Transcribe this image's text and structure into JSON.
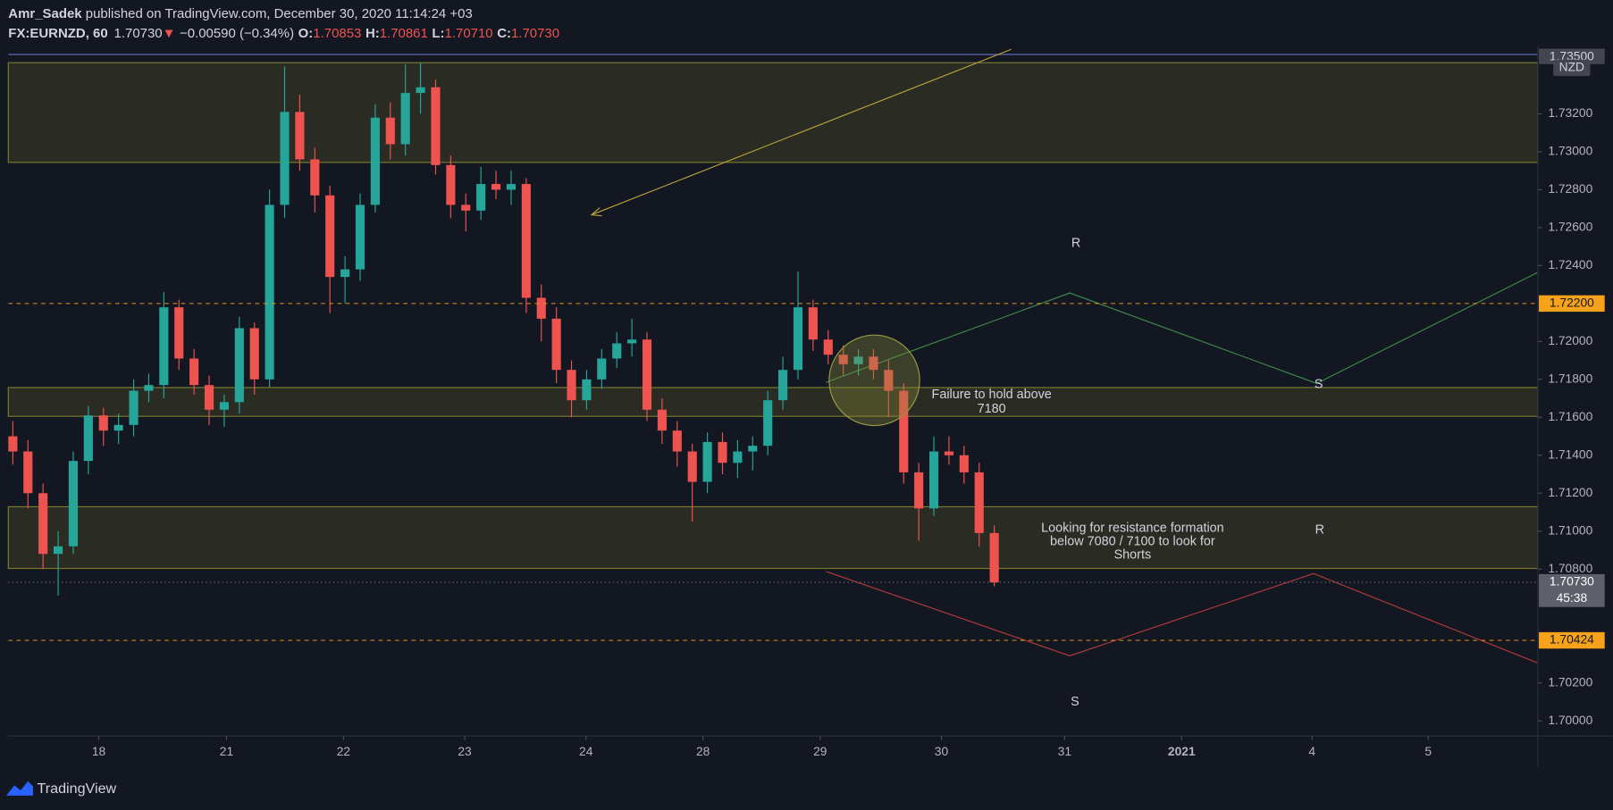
{
  "header": {
    "author": "Amr_Sadek",
    "published": " published on TradingView.com, December 30, 2020 11:14:24 +03",
    "symbol": "FX:EURNZD, 60",
    "last": "1.70730",
    "direction": "▼",
    "change": "−0.00590 (−0.34%)",
    "ohlc": [
      {
        "label": "O:",
        "value": "1.70853"
      },
      {
        "label": "H:",
        "value": "1.70861"
      },
      {
        "label": "L:",
        "value": "1.70710"
      },
      {
        "label": "C:",
        "value": "1.70730"
      }
    ]
  },
  "chart_data": {
    "type": "candlestick",
    "currency": "NZD",
    "colors": {
      "up": "#26a69a",
      "down": "#ef5350"
    },
    "xlim": [
      -0.3,
      101.0
    ],
    "ylim": [
      1.6992,
      1.7354
    ],
    "xticks": [
      {
        "value": 5.69,
        "label": "18"
      },
      {
        "value": 14.15,
        "label": "21"
      },
      {
        "value": 21.9,
        "label": "22"
      },
      {
        "value": 29.93,
        "label": "23"
      },
      {
        "value": 37.96,
        "label": "24"
      },
      {
        "value": 45.71,
        "label": "28"
      },
      {
        "value": 53.47,
        "label": "29"
      },
      {
        "value": 61.5,
        "label": "30"
      },
      {
        "value": 69.66,
        "label": "31"
      },
      {
        "value": 77.41,
        "label": "2021"
      },
      {
        "value": 86.05,
        "label": "4"
      },
      {
        "value": 93.74,
        "label": "5"
      }
    ],
    "yticks": [
      {
        "value": 1.732,
        "label": "1.73200"
      },
      {
        "value": 1.73,
        "label": "1.73000"
      },
      {
        "value": 1.728,
        "label": "1.72800"
      },
      {
        "value": 1.726,
        "label": "1.72600"
      },
      {
        "value": 1.724,
        "label": "1.72400"
      },
      {
        "value": 1.72,
        "label": "1.72000"
      },
      {
        "value": 1.718,
        "label": "1.71800"
      },
      {
        "value": 1.716,
        "label": "1.71600"
      },
      {
        "value": 1.714,
        "label": "1.71400"
      },
      {
        "value": 1.712,
        "label": "1.71200"
      },
      {
        "value": 1.71,
        "label": "1.71000"
      },
      {
        "value": 1.708,
        "label": "1.70800"
      },
      {
        "value": 1.702,
        "label": "1.70200"
      },
      {
        "value": 1.7,
        "label": "1.70000"
      }
    ],
    "top_label": {
      "value": 1.735,
      "label": "1.73500"
    },
    "levels": [
      {
        "value": 1.722,
        "label": "1.72200",
        "color": "#f7a21b"
      },
      {
        "value": 1.70424,
        "label": "1.70424",
        "color": "#f7a21b"
      }
    ],
    "last_price": {
      "value": 1.7073,
      "label": "1.70730",
      "countdown": "45:38"
    },
    "x": [
      0,
      1,
      2,
      3,
      4,
      5,
      6,
      7,
      8,
      9,
      10,
      11,
      12,
      13,
      14,
      15,
      16,
      17,
      18,
      19,
      20,
      21,
      22,
      23,
      24,
      25,
      26,
      27,
      28,
      29,
      30,
      31,
      32,
      33,
      34,
      35,
      36,
      37,
      38,
      39,
      40,
      41,
      42,
      43,
      44,
      45,
      46,
      47,
      48,
      49,
      50,
      51,
      52,
      53,
      54,
      55,
      56,
      57,
      58,
      59,
      60,
      61,
      62,
      63,
      64,
      65
    ],
    "ohlc": [
      [
        1.715,
        1.7158,
        1.7135,
        1.7142
      ],
      [
        1.7142,
        1.7148,
        1.7112,
        1.712
      ],
      [
        1.712,
        1.7125,
        1.708,
        1.7088
      ],
      [
        1.7088,
        1.71,
        1.7066,
        1.7092
      ],
      [
        1.7092,
        1.7142,
        1.7088,
        1.7137
      ],
      [
        1.7137,
        1.7166,
        1.713,
        1.7161
      ],
      [
        1.7161,
        1.7165,
        1.7145,
        1.7153
      ],
      [
        1.7153,
        1.7162,
        1.7146,
        1.7156
      ],
      [
        1.7156,
        1.718,
        1.715,
        1.7174
      ],
      [
        1.7174,
        1.7183,
        1.7168,
        1.7177
      ],
      [
        1.7177,
        1.7226,
        1.717,
        1.7218
      ],
      [
        1.7218,
        1.7222,
        1.7185,
        1.7191
      ],
      [
        1.7191,
        1.7196,
        1.7172,
        1.7177
      ],
      [
        1.7177,
        1.7182,
        1.7156,
        1.7164
      ],
      [
        1.7164,
        1.7172,
        1.7155,
        1.7168
      ],
      [
        1.7168,
        1.7213,
        1.7162,
        1.7207
      ],
      [
        1.7207,
        1.721,
        1.7172,
        1.718
      ],
      [
        1.718,
        1.728,
        1.7176,
        1.7272
      ],
      [
        1.7272,
        1.7345,
        1.7265,
        1.7321
      ],
      [
        1.7321,
        1.733,
        1.729,
        1.7296
      ],
      [
        1.7296,
        1.7302,
        1.7268,
        1.7277
      ],
      [
        1.7277,
        1.7282,
        1.7215,
        1.7234
      ],
      [
        1.7234,
        1.7245,
        1.722,
        1.7238
      ],
      [
        1.7238,
        1.7278,
        1.7232,
        1.7272
      ],
      [
        1.7272,
        1.7325,
        1.7268,
        1.7318
      ],
      [
        1.7318,
        1.7326,
        1.7296,
        1.7304
      ],
      [
        1.7304,
        1.7346,
        1.7298,
        1.7331
      ],
      [
        1.7331,
        1.7347,
        1.732,
        1.7334
      ],
      [
        1.7334,
        1.7338,
        1.7288,
        1.7293
      ],
      [
        1.7293,
        1.7298,
        1.7265,
        1.7272
      ],
      [
        1.7272,
        1.7278,
        1.7258,
        1.7269
      ],
      [
        1.7269,
        1.7292,
        1.7264,
        1.7283
      ],
      [
        1.7283,
        1.729,
        1.7275,
        1.728
      ],
      [
        1.728,
        1.729,
        1.7272,
        1.7283
      ],
      [
        1.7283,
        1.7286,
        1.7215,
        1.7223
      ],
      [
        1.7223,
        1.723,
        1.72,
        1.7212
      ],
      [
        1.7212,
        1.7218,
        1.7178,
        1.7185
      ],
      [
        1.7185,
        1.719,
        1.716,
        1.7169
      ],
      [
        1.7169,
        1.7185,
        1.7164,
        1.718
      ],
      [
        1.718,
        1.7196,
        1.7175,
        1.7191
      ],
      [
        1.7191,
        1.7205,
        1.7186,
        1.7199
      ],
      [
        1.7199,
        1.7212,
        1.7192,
        1.7201
      ],
      [
        1.7201,
        1.7205,
        1.7158,
        1.7164
      ],
      [
        1.7164,
        1.717,
        1.7146,
        1.7153
      ],
      [
        1.7153,
        1.7158,
        1.7134,
        1.7142
      ],
      [
        1.7142,
        1.7146,
        1.7105,
        1.7126
      ],
      [
        1.7126,
        1.7152,
        1.712,
        1.7147
      ],
      [
        1.7147,
        1.7152,
        1.713,
        1.7136
      ],
      [
        1.7136,
        1.7148,
        1.7128,
        1.7142
      ],
      [
        1.7142,
        1.715,
        1.7132,
        1.7145
      ],
      [
        1.7145,
        1.7174,
        1.714,
        1.7169
      ],
      [
        1.7169,
        1.7192,
        1.7164,
        1.7185
      ],
      [
        1.7185,
        1.7237,
        1.718,
        1.7218
      ],
      [
        1.7218,
        1.7222,
        1.7195,
        1.7201
      ],
      [
        1.7201,
        1.7206,
        1.7188,
        1.7193
      ],
      [
        1.7193,
        1.7198,
        1.7182,
        1.7188
      ],
      [
        1.7188,
        1.7196,
        1.7182,
        1.7192
      ],
      [
        1.7192,
        1.7196,
        1.718,
        1.7185
      ],
      [
        1.7185,
        1.719,
        1.716,
        1.7174
      ],
      [
        1.7174,
        1.7178,
        1.7125,
        1.7131
      ],
      [
        1.7131,
        1.7136,
        1.7095,
        1.7112
      ],
      [
        1.7112,
        1.715,
        1.7108,
        1.7142
      ],
      [
        1.7142,
        1.715,
        1.7135,
        1.714
      ],
      [
        1.714,
        1.7145,
        1.7125,
        1.7131
      ],
      [
        1.7131,
        1.7136,
        1.7092,
        1.7099
      ],
      [
        1.7099,
        1.7103,
        1.7071,
        1.7073
      ]
    ]
  },
  "labels": [
    "R",
    "S",
    "R",
    "S"
  ],
  "notes": [
    [
      "Failure to hold above",
      "7180"
    ],
    [
      "Looking for resistance formation",
      "below 7080 / 7100 to look for",
      "Shorts"
    ]
  ],
  "footer": {
    "brand": "TradingView"
  }
}
